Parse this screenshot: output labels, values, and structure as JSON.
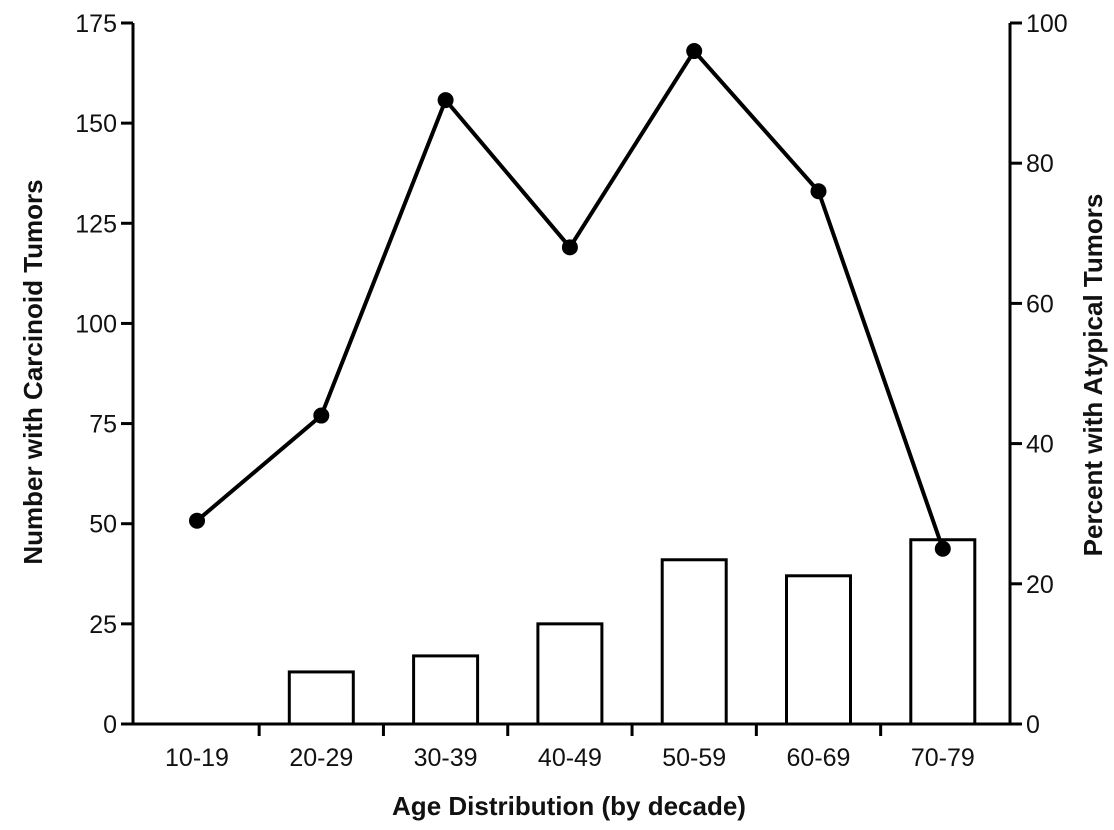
{
  "chart_data": {
    "type": "bar",
    "categories": [
      "10-19",
      "20-29",
      "30-39",
      "40-49",
      "50-59",
      "60-69",
      "70-79"
    ],
    "series": [
      {
        "type": "bar",
        "axis": "left",
        "values": [
          0,
          13,
          17,
          25,
          41,
          37,
          46
        ]
      },
      {
        "type": "line",
        "axis": "right",
        "values": [
          29,
          44,
          89,
          68,
          96,
          76,
          25
        ]
      }
    ],
    "xlabel": "Age Distribution (by decade)",
    "ylabel_left": "Number with Carcinoid Tumors",
    "ylabel_right": "Percent with Atypical Tumors",
    "ylim_left": [
      0,
      175
    ],
    "yticks_left": [
      0,
      25,
      50,
      75,
      100,
      125,
      150,
      175
    ],
    "ylim_right": [
      0,
      100
    ],
    "yticks_right": [
      0,
      20,
      40,
      60,
      80,
      100
    ],
    "grid": false,
    "legend": "none",
    "colors": {
      "bar_fill": "#ffffff",
      "stroke": "#000000",
      "marker": "#000000"
    }
  }
}
